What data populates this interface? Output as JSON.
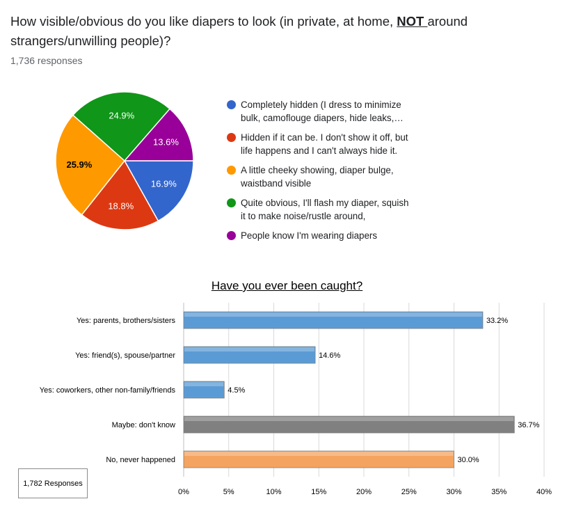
{
  "question": {
    "title_part1": "How visible/obvious do you like diapers to look (in private, at home, ",
    "title_emphasis": "NOT ",
    "title_part2": "around strangers/unwilling people)?",
    "responses": "1,736 responses"
  },
  "chart_data": [
    {
      "type": "pie",
      "slices": [
        {
          "label": "Completely hidden (I dress to minimize bulk, camoflouge diapers, hide leaks,…",
          "value": 16.9,
          "display": "16.9%",
          "color": "#3366cc"
        },
        {
          "label": "Hidden if it can be. I don't show it off, but life happens and I can't always hide it.",
          "value": 18.8,
          "display": "18.8%",
          "color": "#dc3912"
        },
        {
          "label": "A little cheeky showing, diaper bulge, waistband visible",
          "value": 25.9,
          "display": "25.9%",
          "color": "#ff9900"
        },
        {
          "label": "Quite obvious, I'll flash my diaper, squish it to make noise/rustle around,",
          "value": 24.9,
          "display": "24.9%",
          "color": "#109618"
        },
        {
          "label": "People know I'm wearing diapers",
          "value": 13.6,
          "display": "13.6%",
          "color": "#990099"
        }
      ]
    },
    {
      "type": "bar",
      "orientation": "horizontal",
      "title": "Have you ever been caught?",
      "categories": [
        "Yes: parents, brothers/sisters",
        "Yes: friend(s), spouse/partner",
        "Yes: coworkers, other non-family/friends",
        "Maybe: don't know",
        "No, never happened"
      ],
      "values": [
        33.2,
        14.6,
        4.5,
        36.7,
        30.0
      ],
      "value_labels": [
        "33.2%",
        "14.6%",
        "4.5%",
        "36.7%",
        "30.0%"
      ],
      "colors": [
        "#5b9bd5",
        "#5b9bd5",
        "#5b9bd5",
        "#808080",
        "#f4a460"
      ],
      "xlim": [
        0,
        40
      ],
      "xticks": [
        "0%",
        "5%",
        "10%",
        "15%",
        "20%",
        "25%",
        "30%",
        "35%",
        "40%"
      ],
      "grid": true,
      "annotation": "1,782 Responses"
    }
  ]
}
